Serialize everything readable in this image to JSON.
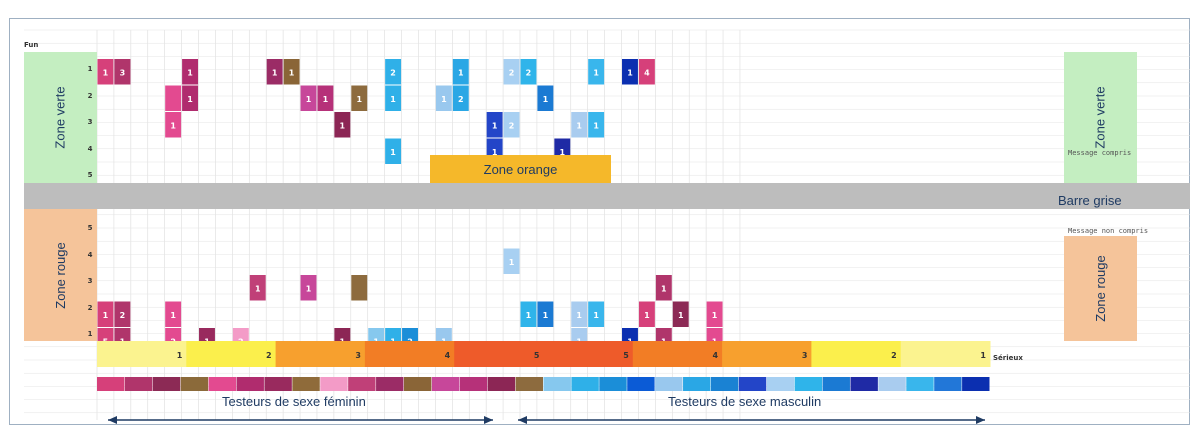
{
  "zones": {
    "vert_left": "Zone verte",
    "vert_right": "Zone verte",
    "rouge_left": "Zone rouge",
    "rouge_right": "Zone rouge",
    "orange": "Zone orange",
    "grise": "Barre grise"
  },
  "labels": {
    "fun": "Fun",
    "message_compris": "Message compris",
    "message_non_compris": "Message non compris",
    "serieux": "Sérieux",
    "fun_rows": [
      "1",
      "2",
      "3",
      "4",
      "5"
    ],
    "serious_rows": [
      "5",
      "4",
      "3",
      "2",
      "1"
    ],
    "scale": [
      "1",
      "2",
      "3",
      "4",
      "5",
      "5",
      "4",
      "3",
      "2",
      "1"
    ]
  },
  "captions": {
    "female": "Testeurs de sexe féminin",
    "male": "Testeurs de sexe masculin"
  },
  "colors": {
    "green_zone": "#c4eec1",
    "red_zone": "#f5c49a",
    "orange_zone": "#f5b82a",
    "grey_bar": "#bdbdbd",
    "arrow": "#1f3b63"
  },
  "tester_colors": [
    "#d6407a",
    "#b0356b",
    "#8c2a55",
    "#8b6a3a",
    "#e34a90",
    "#b02c6e",
    "#992a5e",
    "#8f6b3a",
    "#f39bc7",
    "#c04078",
    "#9b2c66",
    "#8a6537",
    "#c7479a",
    "#b63179",
    "#8c2655",
    "#8d6b3e",
    "#86c8ee",
    "#2fb0e8",
    "#1b8ed8",
    "#0b5bd6",
    "#99c8ee",
    "#2aa7e5",
    "#1a82d3",
    "#2345c8",
    "#a8d0f2",
    "#2fb4ea",
    "#1b7ad3",
    "#1f2aa5",
    "#a9ccef",
    "#39b6ec",
    "#2277d8",
    "#0b2fb0"
  ],
  "scale_colors": [
    "#fbf38f",
    "#fbef4c",
    "#f7a02e",
    "#f27d25",
    "#ee5b2a",
    "#ee5b2a",
    "#f27d25",
    "#f7a02e",
    "#fbef4c",
    "#fbf38f"
  ],
  "cells": [
    {
      "t": 0,
      "fun": 1,
      "v": "1"
    },
    {
      "t": 1,
      "fun": 1,
      "v": "1"
    },
    {
      "t": 1,
      "fun": 1,
      "v": "3"
    },
    {
      "t": 5,
      "fun": 1,
      "v": "1"
    },
    {
      "t": 4,
      "fun": 2,
      "v": ""
    },
    {
      "t": 5,
      "fun": 2,
      "v": "1"
    },
    {
      "t": 4,
      "fun": 3,
      "v": "1"
    },
    {
      "t": 10,
      "fun": 1,
      "v": "1"
    },
    {
      "t": 11,
      "fun": 1,
      "v": "1"
    },
    {
      "t": 12,
      "fun": 2,
      "v": "1"
    },
    {
      "t": 13,
      "fun": 2,
      "v": "1"
    },
    {
      "t": 15,
      "fun": 2,
      "v": "1"
    },
    {
      "t": 14,
      "fun": 3,
      "v": "1"
    },
    {
      "t": 17,
      "fun": 1,
      "v": "2"
    },
    {
      "t": 17,
      "fun": 2,
      "v": "1"
    },
    {
      "t": 17,
      "fun": 4,
      "v": "1"
    },
    {
      "t": 20,
      "fun": 2,
      "v": "1"
    },
    {
      "t": 21,
      "fun": 1,
      "v": "1"
    },
    {
      "t": 21,
      "fun": 2,
      "v": "2"
    },
    {
      "t": 23,
      "fun": 3,
      "v": "1"
    },
    {
      "t": 23,
      "fun": 4,
      "v": "1"
    },
    {
      "t": 24,
      "fun": 1,
      "v": "2"
    },
    {
      "t": 24,
      "fun": 3,
      "v": "2"
    },
    {
      "t": 25,
      "fun": 1,
      "v": "2"
    },
    {
      "t": 26,
      "fun": 2,
      "v": "1"
    },
    {
      "t": 27,
      "fun": 4,
      "v": "1"
    },
    {
      "t": 28,
      "fun": 3,
      "v": "1"
    },
    {
      "t": 29,
      "fun": 1,
      "v": "1"
    },
    {
      "t": 29,
      "fun": 3,
      "v": "1"
    },
    {
      "t": 31,
      "fun": 1,
      "v": "1"
    },
    {
      "t": 32,
      "fun": 1,
      "v": "4"
    },
    {
      "t": 0,
      "ser": 2,
      "v": "1"
    },
    {
      "t": 0,
      "ser": 1,
      "v": "5"
    },
    {
      "t": 1,
      "ser": 2,
      "v": "2"
    },
    {
      "t": 1,
      "ser": 1,
      "v": "1"
    },
    {
      "t": 4,
      "ser": 2,
      "v": "1"
    },
    {
      "t": 4,
      "ser": 1,
      "v": "2"
    },
    {
      "t": 6,
      "ser": 1,
      "v": "1"
    },
    {
      "t": 8,
      "ser": 1,
      "v": "2"
    },
    {
      "t": 9,
      "ser": 3,
      "v": "1"
    },
    {
      "t": 12,
      "ser": 3,
      "v": "1"
    },
    {
      "t": 14,
      "ser": 1,
      "v": "1"
    },
    {
      "t": 15,
      "ser": 3,
      "v": ""
    },
    {
      "t": 16,
      "ser": 1,
      "v": "1"
    },
    {
      "t": 17,
      "ser": 1,
      "v": "1"
    },
    {
      "t": 18,
      "ser": 1,
      "v": "2"
    },
    {
      "t": 20,
      "ser": 1,
      "v": "1"
    },
    {
      "t": 24,
      "ser": 4,
      "v": "1"
    },
    {
      "t": 25,
      "ser": 2,
      "v": "1"
    },
    {
      "t": 26,
      "ser": 2,
      "v": "1"
    },
    {
      "t": 28,
      "ser": 2,
      "v": "1"
    },
    {
      "t": 28,
      "ser": 1,
      "v": "1"
    },
    {
      "t": 29,
      "ser": 2,
      "v": "1"
    },
    {
      "t": 31,
      "ser": 1,
      "v": "1"
    },
    {
      "t": 32,
      "ser": 2,
      "v": "1"
    },
    {
      "t": 33,
      "ser": 3,
      "v": "1"
    },
    {
      "t": 33,
      "ser": 1,
      "v": "1"
    },
    {
      "t": 34,
      "ser": 2,
      "v": "1"
    },
    {
      "t": 36,
      "ser": 2,
      "v": "1"
    },
    {
      "t": 36,
      "ser": 1,
      "v": "1"
    }
  ]
}
